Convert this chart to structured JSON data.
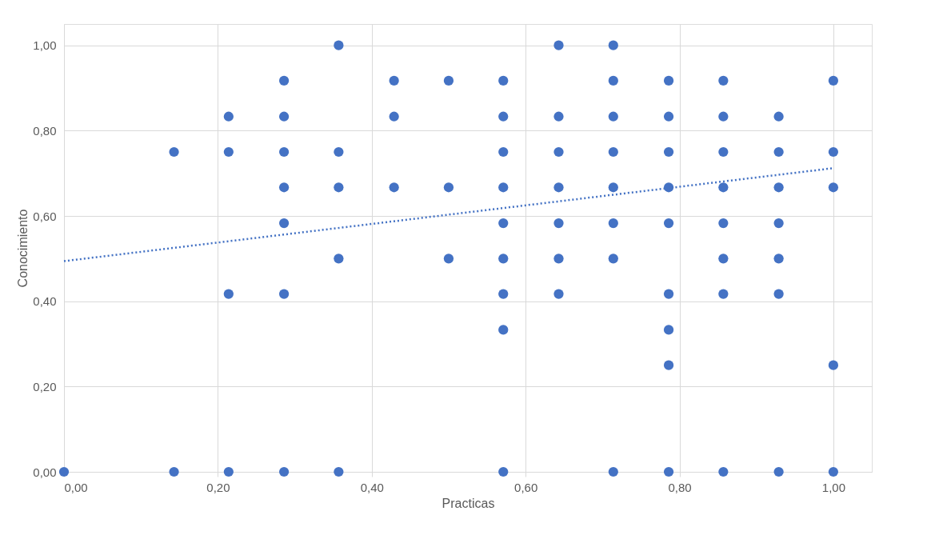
{
  "chart_data": {
    "type": "scatter",
    "xlabel": "Practicas",
    "ylabel": "Conocimiento",
    "xlim": [
      0,
      1.05
    ],
    "ylim": [
      0,
      1.05
    ],
    "xticks": [
      {
        "value": 0,
        "label": "0,00"
      },
      {
        "value": 0.2,
        "label": "0,20"
      },
      {
        "value": 0.4,
        "label": "0,40"
      },
      {
        "value": 0.6,
        "label": "0,60"
      },
      {
        "value": 0.8,
        "label": "0,80"
      },
      {
        "value": 1,
        "label": "1,00"
      }
    ],
    "yticks": [
      {
        "value": 0,
        "label": "0,00"
      },
      {
        "value": 0.2,
        "label": "0,20"
      },
      {
        "value": 0.4,
        "label": "0,40"
      },
      {
        "value": 0.6,
        "label": "0,60"
      },
      {
        "value": 0.8,
        "label": "0,80"
      },
      {
        "value": 1,
        "label": "1,00"
      }
    ],
    "grid": true,
    "series": [
      {
        "color": "#4472c4",
        "marker": "circle",
        "x": [
          0,
          0.143,
          0.143,
          0.214,
          0.214,
          0.214,
          0.214,
          0.286,
          0.286,
          0.286,
          0.286,
          0.286,
          0.286,
          0.286,
          0.357,
          0.357,
          0.357,
          0.357,
          0.357,
          0.429,
          0.429,
          0.429,
          0.5,
          0.5,
          0.5,
          0.571,
          0.571,
          0.571,
          0.571,
          0.571,
          0.571,
          0.571,
          0.571,
          0.571,
          0.643,
          0.643,
          0.643,
          0.643,
          0.643,
          0.643,
          0.643,
          0.714,
          0.714,
          0.714,
          0.714,
          0.714,
          0.714,
          0.714,
          0.714,
          0.786,
          0.786,
          0.786,
          0.786,
          0.786,
          0.786,
          0.786,
          0.786,
          0.786,
          0.857,
          0.857,
          0.857,
          0.857,
          0.857,
          0.857,
          0.857,
          0.857,
          0.929,
          0.929,
          0.929,
          0.929,
          0.929,
          0.929,
          0.929,
          1,
          1,
          1,
          1,
          1
        ],
        "values": [
          0,
          0.75,
          0,
          0.833,
          0.75,
          0.417,
          0,
          0.917,
          0.833,
          0.75,
          0.667,
          0.583,
          0.417,
          0,
          1,
          0.75,
          0.667,
          0.5,
          0,
          0.917,
          0.833,
          0.667,
          0.917,
          0.667,
          0.5,
          0.917,
          0.833,
          0.75,
          0.667,
          0.583,
          0.5,
          0.417,
          0.333,
          0,
          1,
          0.833,
          0.75,
          0.667,
          0.583,
          0.5,
          0.417,
          1,
          0.917,
          0.833,
          0.75,
          0.667,
          0.583,
          0.5,
          0,
          0.917,
          0.833,
          0.75,
          0.667,
          0.583,
          0.417,
          0.333,
          0.25,
          0,
          0.917,
          0.833,
          0.75,
          0.667,
          0.583,
          0.5,
          0.417,
          0,
          0.833,
          0.75,
          0.667,
          0.583,
          0.5,
          0.417,
          0,
          0.917,
          0.75,
          0.667,
          0.25,
          0
        ]
      },
      {
        "type": "line",
        "color": "#4472c4",
        "line_style": "dotted",
        "x": [
          0,
          1
        ],
        "values": [
          0.494,
          0.712
        ]
      }
    ]
  }
}
